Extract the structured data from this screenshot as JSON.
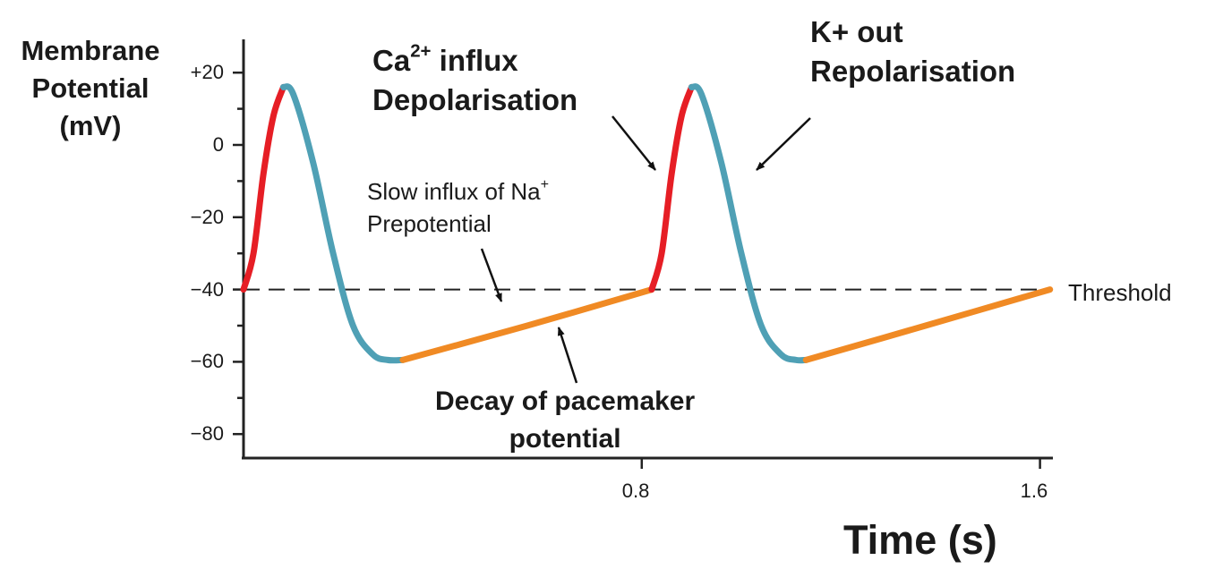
{
  "chart_data": {
    "type": "line",
    "title": "",
    "ylabel": [
      "Membrane",
      "Potential",
      "(mV)"
    ],
    "xlabel": "Time (s)",
    "ylim": [
      -85,
      28
    ],
    "xlim": [
      0,
      1.62
    ],
    "yticks": [
      20,
      0,
      -20,
      -40,
      -60,
      -80
    ],
    "ytick_labels": [
      "+20",
      "0",
      "−20",
      "−40",
      "−60",
      "−80"
    ],
    "xticks": [
      0.8,
      1.6
    ],
    "xtick_labels": [
      "0.8",
      "1.6"
    ],
    "threshold": {
      "value": -40,
      "label": "Threshold",
      "style": "dashed"
    },
    "colors": {
      "ca": "#e61e25",
      "k": "#4fa0b5",
      "na": "#f08a24",
      "axis": "#222222"
    },
    "series": [
      {
        "phase": "ca",
        "points": [
          [
            0,
            -40
          ],
          [
            0.02,
            -30
          ],
          [
            0.04,
            -8
          ],
          [
            0.06,
            8
          ],
          [
            0.08,
            16
          ]
        ]
      },
      {
        "phase": "k",
        "points": [
          [
            0.08,
            16
          ],
          [
            0.1,
            14
          ],
          [
            0.14,
            -5
          ],
          [
            0.18,
            -30
          ],
          [
            0.22,
            -50
          ],
          [
            0.26,
            -58
          ],
          [
            0.29,
            -59.5
          ],
          [
            0.32,
            -59.5
          ]
        ]
      },
      {
        "phase": "na",
        "points": [
          [
            0.32,
            -59.5
          ],
          [
            0.57,
            -50
          ],
          [
            0.82,
            -40
          ]
        ]
      },
      {
        "phase": "ca",
        "points": [
          [
            0.82,
            -40
          ],
          [
            0.84,
            -30
          ],
          [
            0.86,
            -8
          ],
          [
            0.88,
            8
          ],
          [
            0.9,
            16
          ]
        ]
      },
      {
        "phase": "k",
        "points": [
          [
            0.9,
            16
          ],
          [
            0.92,
            14
          ],
          [
            0.96,
            -5
          ],
          [
            1.0,
            -30
          ],
          [
            1.04,
            -50
          ],
          [
            1.08,
            -58
          ],
          [
            1.11,
            -59.5
          ],
          [
            1.13,
            -59.5
          ]
        ]
      },
      {
        "phase": "na",
        "points": [
          [
            1.13,
            -59.5
          ],
          [
            1.37,
            -50
          ],
          [
            1.62,
            -40
          ]
        ]
      }
    ],
    "annotations": {
      "ca_line1": "Ca",
      "ca_sup": "2+",
      "ca_line1_rest": " influx",
      "ca_line2": "Depolarisation",
      "k_line1": "K+ out",
      "k_line2": "Repolarisation",
      "na_line1": "Slow influx of Na",
      "na_sup": "+",
      "na_line2": "Prepotential",
      "decay_line1": "Decay of pacemaker",
      "decay_line2": "potential"
    }
  }
}
